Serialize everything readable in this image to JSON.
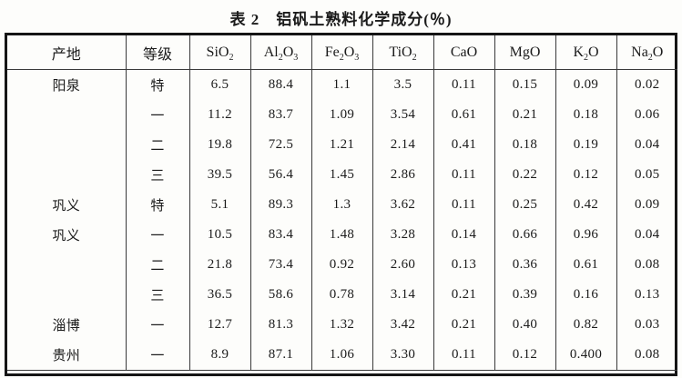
{
  "title": "表 2　铝矾土熟料化学成分(％)",
  "colors": {
    "border": "#151515",
    "gridline": "#3a3a3a",
    "text": "#1b1b1b",
    "background": "#fdfdfb"
  },
  "table": {
    "headers": [
      "产地",
      "等级",
      "SiO2",
      "Al2O3",
      "Fe2O3",
      "TiO2",
      "CaO",
      "MgO",
      "K2O",
      "Na2O"
    ],
    "rows": [
      [
        "阳泉",
        "特",
        "6.5",
        "88.4",
        "1.1",
        "3.5",
        "0.11",
        "0.15",
        "0.09",
        "0.02"
      ],
      [
        "",
        "一",
        "11.2",
        "83.7",
        "1.09",
        "3.54",
        "0.61",
        "0.21",
        "0.18",
        "0.06"
      ],
      [
        "",
        "二",
        "19.8",
        "72.5",
        "1.21",
        "2.14",
        "0.41",
        "0.18",
        "0.19",
        "0.04"
      ],
      [
        "",
        "三",
        "39.5",
        "56.4",
        "1.45",
        "2.86",
        "0.11",
        "0.22",
        "0.12",
        "0.05"
      ],
      [
        "巩义",
        "特",
        "5.1",
        "89.3",
        "1.3",
        "3.62",
        "0.11",
        "0.25",
        "0.42",
        "0.09"
      ],
      [
        "巩义",
        "一",
        "10.5",
        "83.4",
        "1.48",
        "3.28",
        "0.14",
        "0.66",
        "0.96",
        "0.04"
      ],
      [
        "",
        "二",
        "21.8",
        "73.4",
        "0.92",
        "2.60",
        "0.13",
        "0.36",
        "0.61",
        "0.08"
      ],
      [
        "",
        "三",
        "36.5",
        "58.6",
        "0.78",
        "3.14",
        "0.21",
        "0.39",
        "0.16",
        "0.13"
      ],
      [
        "淄博",
        "一",
        "12.7",
        "81.3",
        "1.32",
        "3.42",
        "0.21",
        "0.40",
        "0.82",
        "0.03"
      ],
      [
        "贵州",
        "一",
        "8.9",
        "87.1",
        "1.06",
        "3.30",
        "0.11",
        "0.12",
        "0.400",
        "0.08"
      ]
    ]
  }
}
